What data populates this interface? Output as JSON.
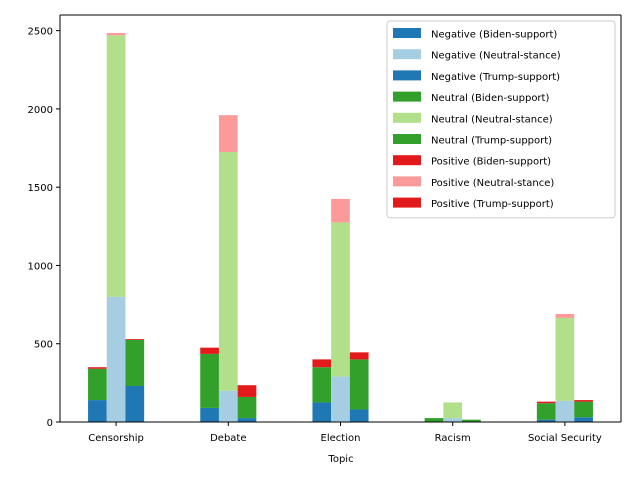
{
  "chart_data": {
    "type": "bar",
    "stacked": true,
    "grouped": true,
    "title": "",
    "xlabel": "Topic",
    "ylabel": "",
    "ylim": [
      0,
      2600
    ],
    "yticks": [
      0,
      500,
      1000,
      1500,
      2000,
      2500
    ],
    "categories": [
      "Censorship",
      "Debate",
      "Election",
      "Racism",
      "Social Security"
    ],
    "groups": [
      "Biden-support",
      "Neutral-stance",
      "Trump-support"
    ],
    "grid": false,
    "legend_placement": "top-right",
    "series": [
      {
        "name": "Negative (Biden-support)",
        "sentiment": "Negative",
        "group": "Biden-support",
        "color": "#1f78b4",
        "values": [
          140,
          90,
          125,
          0,
          15
        ]
      },
      {
        "name": "Negative (Neutral-stance)",
        "sentiment": "Negative",
        "group": "Neutral-stance",
        "color": "#a6cee3",
        "values": [
          800,
          200,
          290,
          25,
          135
        ]
      },
      {
        "name": "Negative (Trump-support)",
        "sentiment": "Negative",
        "group": "Trump-support",
        "color": "#1f78b4",
        "values": [
          230,
          25,
          80,
          0,
          30
        ]
      },
      {
        "name": "Neutral (Biden-support)",
        "sentiment": "Neutral",
        "group": "Biden-support",
        "color": "#33a02c",
        "values": [
          200,
          345,
          225,
          25,
          105
        ]
      },
      {
        "name": "Neutral (Neutral-stance)",
        "sentiment": "Neutral",
        "group": "Neutral-stance",
        "color": "#b2df8a",
        "values": [
          1670,
          1525,
          985,
          100,
          530
        ]
      },
      {
        "name": "Neutral (Trump-support)",
        "sentiment": "Neutral",
        "group": "Trump-support",
        "color": "#33a02c",
        "values": [
          295,
          135,
          320,
          15,
          100
        ]
      },
      {
        "name": "Positive (Biden-support)",
        "sentiment": "Positive",
        "group": "Biden-support",
        "color": "#e31a1c",
        "values": [
          10,
          40,
          50,
          0,
          10
        ]
      },
      {
        "name": "Positive (Neutral-stance)",
        "sentiment": "Positive",
        "group": "Neutral-stance",
        "color": "#fb9a99",
        "values": [
          15,
          235,
          150,
          0,
          25
        ]
      },
      {
        "name": "Positive (Trump-support)",
        "sentiment": "Positive",
        "group": "Trump-support",
        "color": "#e31a1c",
        "values": [
          5,
          75,
          45,
          0,
          10
        ]
      }
    ]
  }
}
